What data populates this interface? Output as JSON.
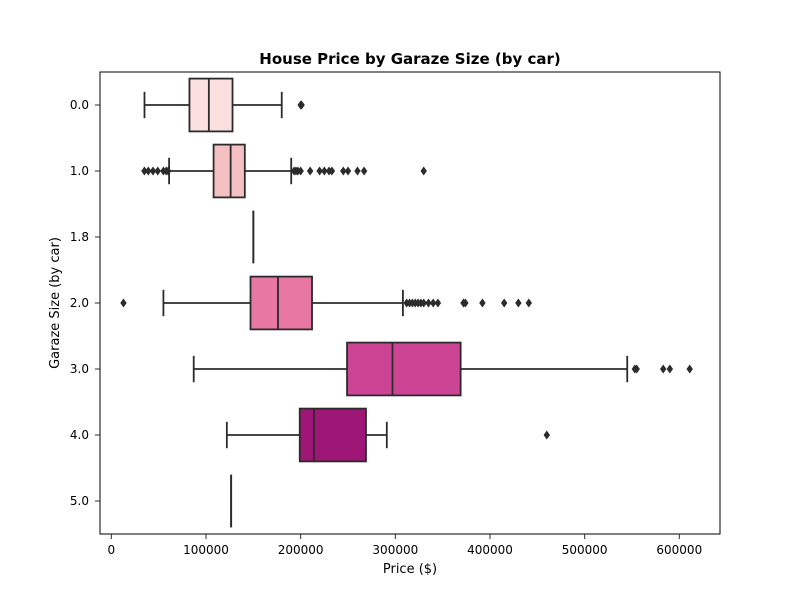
{
  "chart_data": {
    "type": "boxplot",
    "orientation": "horizontal",
    "title": "House Price by Garaze Size (by car)",
    "xlabel": "Price ($)",
    "ylabel": "Garaze Size (by car)",
    "xlim": [
      -12000,
      643000
    ],
    "x_ticks": [
      0,
      100000,
      200000,
      300000,
      400000,
      500000,
      600000
    ],
    "x_tick_labels": [
      "0",
      "100000",
      "200000",
      "300000",
      "400000",
      "500000",
      "600000"
    ],
    "grid": false,
    "categories": [
      "0.0",
      "1.0",
      "1.8",
      "2.0",
      "3.0",
      "4.0",
      "5.0"
    ],
    "boxes": [
      {
        "category": "0.0",
        "whislo": 35000,
        "q1": 82500,
        "med": 103000,
        "q3": 128000,
        "whishi": 180000,
        "fliers": [
          200000,
          201000
        ]
      },
      {
        "category": "1.0",
        "whislo": 61000,
        "q1": 108000,
        "med": 126000,
        "q3": 141000,
        "whishi": 190000,
        "fliers": [
          34900,
          39000,
          44000,
          49000,
          55000,
          58000,
          60000,
          193000,
          195000,
          197000,
          200000,
          210000,
          220000,
          225000,
          230000,
          233000,
          245000,
          250000,
          260000,
          267000,
          330000
        ]
      },
      {
        "category": "1.8",
        "whislo": 150000,
        "q1": 150000,
        "med": 150000,
        "q3": 150000,
        "whishi": 150000,
        "fliers": []
      },
      {
        "category": "2.0",
        "whislo": 55000,
        "q1": 147000,
        "med": 176000,
        "q3": 212000,
        "whishi": 308000,
        "fliers": [
          12800,
          312000,
          315000,
          318000,
          321000,
          324000,
          327000,
          330000,
          335000,
          340000,
          345000,
          372000,
          374000,
          392000,
          415000,
          430000,
          441000
        ]
      },
      {
        "category": "3.0",
        "whislo": 87000,
        "q1": 249000,
        "med": 297000,
        "q3": 369000,
        "whishi": 545000,
        "fliers": [
          553000,
          555000,
          583000,
          590000,
          611000
        ]
      },
      {
        "category": "4.0",
        "whislo": 122000,
        "q1": 199000,
        "med": 214000,
        "q3": 269000,
        "whishi": 291000,
        "fliers": [
          460000
        ]
      },
      {
        "category": "5.0",
        "whislo": 126500,
        "q1": 126500,
        "med": 126500,
        "q3": 126500,
        "whishi": 126500,
        "fliers": []
      }
    ],
    "box_colors": [
      "#fae1e0",
      "#f4c0c2",
      "#f08fb1",
      "#e877a3",
      "#cc4594",
      "#9e1676",
      "#6e0468"
    ]
  }
}
